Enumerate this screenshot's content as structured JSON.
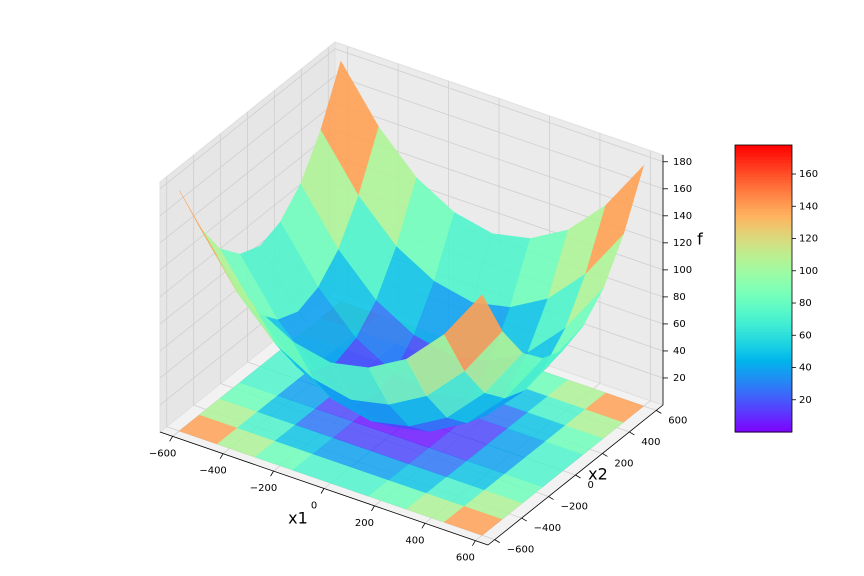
{
  "chart_data": {
    "type": "surface",
    "colormap": "rainbow",
    "x_label": "x1",
    "y_label": "x2",
    "z_label": "f",
    "x": [
      -600,
      -450,
      -300,
      -150,
      0,
      150,
      300,
      450,
      600
    ],
    "y": [
      -600,
      -450,
      -300,
      -150,
      0,
      150,
      300,
      450,
      600
    ],
    "z": [
      [
        178,
        139,
        111,
        95,
        89,
        95,
        111,
        139,
        178
      ],
      [
        139,
        100,
        72,
        56,
        50,
        56,
        72,
        100,
        139
      ],
      [
        111,
        72,
        44,
        28,
        22,
        28,
        44,
        72,
        111
      ],
      [
        95,
        56,
        28,
        12,
        6,
        12,
        28,
        56,
        95
      ],
      [
        89,
        50,
        22,
        6,
        0,
        6,
        22,
        50,
        89
      ],
      [
        95,
        56,
        28,
        12,
        6,
        12,
        28,
        56,
        95
      ],
      [
        111,
        72,
        44,
        28,
        22,
        28,
        44,
        72,
        111
      ],
      [
        139,
        100,
        72,
        56,
        50,
        56,
        72,
        100,
        139
      ],
      [
        178,
        139,
        111,
        95,
        89,
        95,
        111,
        139,
        178
      ]
    ],
    "xlim": [
      -650,
      650
    ],
    "ylim": [
      -650,
      650
    ],
    "zlim": [
      0,
      185
    ],
    "xticks": [
      {
        "value": -600,
        "label": "−600"
      },
      {
        "value": -400,
        "label": "−400"
      },
      {
        "value": -200,
        "label": "−200"
      },
      0,
      200,
      400,
      600
    ],
    "yticks": [
      {
        "value": -600,
        "label": "−600"
      },
      {
        "value": -400,
        "label": "−400"
      },
      {
        "value": -200,
        "label": "−200"
      },
      0,
      200,
      400,
      600
    ],
    "zticks": [
      20,
      40,
      60,
      80,
      100,
      120,
      140,
      160,
      180
    ],
    "clim": [
      0,
      178
    ],
    "colorbar_ticks": [
      20,
      40,
      60,
      80,
      100,
      120,
      140,
      160
    ],
    "grid": true
  }
}
